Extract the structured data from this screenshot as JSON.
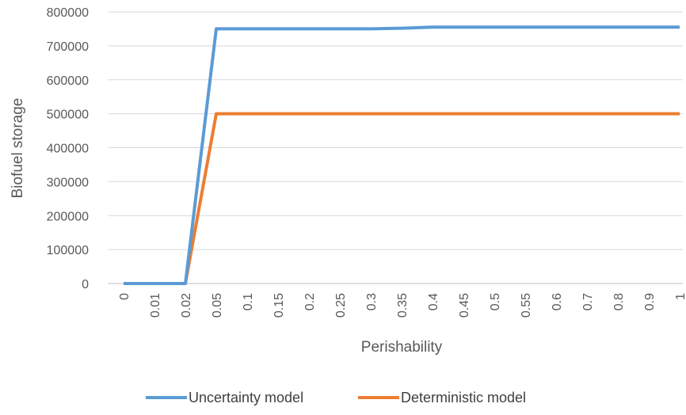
{
  "chart_data": {
    "type": "line",
    "title": "",
    "xlabel": "Perishability",
    "ylabel": "Biofuel storage",
    "categories": [
      "0",
      "0.01",
      "0.02",
      "0.05",
      "0.1",
      "0.15",
      "0.2",
      "0.25",
      "0.3",
      "0.35",
      "0.4",
      "0.45",
      "0.5",
      "0.55",
      "0.6",
      "0.7",
      "0.8",
      "0.9",
      "1"
    ],
    "ylim": [
      0,
      800000
    ],
    "yticks": [
      "0",
      "100000",
      "200000",
      "300000",
      "400000",
      "500000",
      "600000",
      "700000",
      "800000"
    ],
    "grid": "horizontal",
    "legend_position": "bottom",
    "series": [
      {
        "name": "Uncertainty model",
        "color": "#5B9BD5",
        "values": [
          0,
          0,
          0,
          750000,
          750000,
          750000,
          750000,
          750000,
          750000,
          752000,
          755000,
          755000,
          755000,
          755000,
          755000,
          755000,
          755000,
          755000,
          755000
        ]
      },
      {
        "name": "Deterministic model",
        "color": "#ED7D31",
        "values": [
          0,
          0,
          0,
          500000,
          500000,
          500000,
          500000,
          500000,
          500000,
          500000,
          500000,
          500000,
          500000,
          500000,
          500000,
          500000,
          500000,
          500000,
          500000
        ]
      }
    ]
  }
}
